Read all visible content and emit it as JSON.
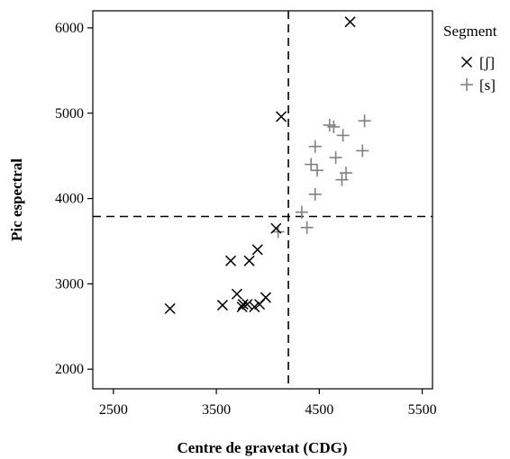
{
  "chart_data": {
    "type": "scatter",
    "xlabel": "Centre de gravetat (CDG)",
    "ylabel": "Pic espectral",
    "xlim": [
      2300,
      5600
    ],
    "ylim": [
      1770,
      6200
    ],
    "xticks": [
      2500,
      3500,
      4500,
      5500
    ],
    "yticks": [
      2000,
      3000,
      4000,
      5000,
      6000
    ],
    "grid": false,
    "legend": {
      "title": "Segment",
      "placement": "right"
    },
    "reference_lines": {
      "x": 4200,
      "y": 3790
    },
    "series": [
      {
        "name": "[ʃ]",
        "marker": "x",
        "color": "#000000",
        "points": [
          [
            3050,
            2710
          ],
          [
            3560,
            2750
          ],
          [
            3640,
            3270
          ],
          [
            3700,
            2880
          ],
          [
            3750,
            2730
          ],
          [
            3760,
            2760
          ],
          [
            3800,
            2760
          ],
          [
            3820,
            3270
          ],
          [
            3870,
            2730
          ],
          [
            3900,
            3400
          ],
          [
            3920,
            2760
          ],
          [
            3980,
            2840
          ],
          [
            4080,
            3650
          ],
          [
            4130,
            4960
          ],
          [
            4800,
            6070
          ]
        ]
      },
      {
        "name": "[s]",
        "marker": "+",
        "color": "#808080",
        "points": [
          [
            4100,
            3610
          ],
          [
            4330,
            3840
          ],
          [
            4380,
            3660
          ],
          [
            4420,
            4400
          ],
          [
            4460,
            4050
          ],
          [
            4460,
            4610
          ],
          [
            4480,
            4330
          ],
          [
            4600,
            4860
          ],
          [
            4640,
            4840
          ],
          [
            4660,
            4480
          ],
          [
            4720,
            4220
          ],
          [
            4730,
            4740
          ],
          [
            4760,
            4300
          ],
          [
            4920,
            4560
          ],
          [
            4940,
            4910
          ]
        ]
      }
    ]
  }
}
